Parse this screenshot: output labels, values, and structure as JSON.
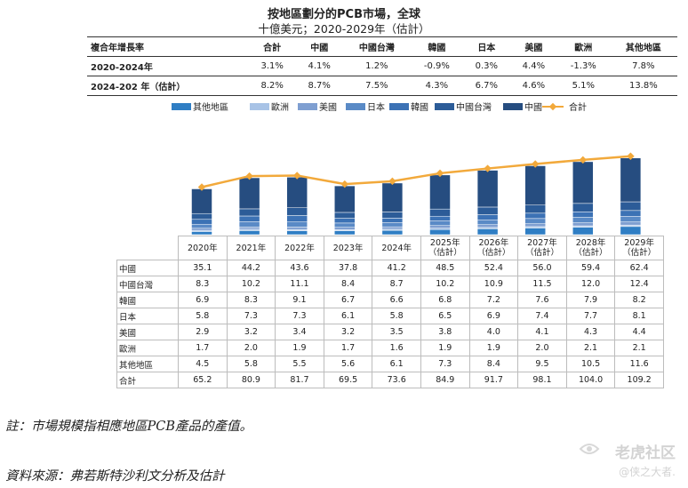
{
  "title": "按地區劃分的PCB市場，全球",
  "subtitle": "十億美元；2020-2029年（估計）",
  "cagr_table": {
    "headers": [
      "複合年增長率",
      "合計",
      "中國",
      "中國台灣",
      "韓國",
      "日本",
      "美國",
      "歐洲",
      "其他地區"
    ],
    "rows": [
      {
        "label": "2020-2024年",
        "values": [
          "3.1%",
          "4.1%",
          "1.2%",
          "-0.9%",
          "0.3%",
          "4.4%",
          "-1.3%",
          "7.8%"
        ]
      },
      {
        "label": "2024-202 年（估計）",
        "values": [
          "8.2%",
          "8.7%",
          "7.5%",
          "4.3%",
          "6.7%",
          "4.6%",
          "5.1%",
          "13.8%"
        ]
      }
    ]
  },
  "colors": {
    "其他地區": "#2f7ec4",
    "歐洲": "#a8c3e6",
    "美國": "#7f9fd1",
    "日本": "#5a8ac6",
    "韓國": "#3c72b5",
    "中國台灣": "#2c5c98",
    "中國": "#264d80",
    "合計": "#f2a93b"
  },
  "chart_data": {
    "type": "bar",
    "stacked": true,
    "title": "按地區劃分的PCB市場，全球",
    "unit": "十億美元",
    "categories": [
      "2020年",
      "2021年",
      "2022年",
      "2023年",
      "2024年",
      "2025年（估計）",
      "2026年（估計）",
      "2027年（估計）",
      "2028年（估計）",
      "2029年（估計）"
    ],
    "category_lines": [
      [
        "2020年"
      ],
      [
        "2021年"
      ],
      [
        "2022年"
      ],
      [
        "2023年"
      ],
      [
        "2024年"
      ],
      [
        "2025年",
        "（估計）"
      ],
      [
        "2026年",
        "（估計）"
      ],
      [
        "2027年",
        "（估計）"
      ],
      [
        "2028年",
        "（估計）"
      ],
      [
        "2029年",
        "（估計）"
      ]
    ],
    "legend": [
      "其他地區",
      "歐洲",
      "美國",
      "日本",
      "韓國",
      "中國台灣",
      "中國",
      "合計"
    ],
    "series": [
      {
        "name": "其他地區",
        "values": [
          4.5,
          5.8,
          5.5,
          5.6,
          6.1,
          7.3,
          8.4,
          9.5,
          10.5,
          11.6
        ]
      },
      {
        "name": "歐洲",
        "values": [
          1.7,
          2.0,
          1.9,
          1.7,
          1.6,
          1.9,
          1.9,
          2.0,
          2.1,
          2.1
        ]
      },
      {
        "name": "美國",
        "values": [
          2.9,
          3.2,
          3.4,
          3.2,
          3.5,
          3.8,
          4.0,
          4.1,
          4.3,
          4.4
        ]
      },
      {
        "name": "日本",
        "values": [
          5.8,
          7.3,
          7.3,
          6.1,
          5.8,
          6.5,
          6.9,
          7.4,
          7.7,
          8.1
        ]
      },
      {
        "name": "韓國",
        "values": [
          6.9,
          8.3,
          9.1,
          6.7,
          6.6,
          6.8,
          7.2,
          7.6,
          7.9,
          8.2
        ]
      },
      {
        "name": "中國台灣",
        "values": [
          8.3,
          10.2,
          11.1,
          8.4,
          8.7,
          10.2,
          10.9,
          11.5,
          12.0,
          12.4
        ]
      },
      {
        "name": "中國",
        "values": [
          35.1,
          44.2,
          43.6,
          37.8,
          41.2,
          48.5,
          52.4,
          56.0,
          59.4,
          62.4
        ]
      }
    ],
    "line_series": {
      "name": "合計",
      "values": [
        65.2,
        80.9,
        81.7,
        69.5,
        73.6,
        84.9,
        91.7,
        98.1,
        104.0,
        109.2
      ]
    },
    "table_rows": [
      "中國",
      "中國台灣",
      "韓國",
      "日本",
      "美國",
      "歐洲",
      "其他地區",
      "合計"
    ],
    "ylim": [
      0,
      120
    ]
  },
  "notes": {
    "note1": "註：市場規模指相應地區PCB產品的產值。",
    "source": "資料來源：弗若斯特沙利文分析及估計"
  },
  "watermark": {
    "text": "老虎社区",
    "handle": "@侠之大者."
  }
}
